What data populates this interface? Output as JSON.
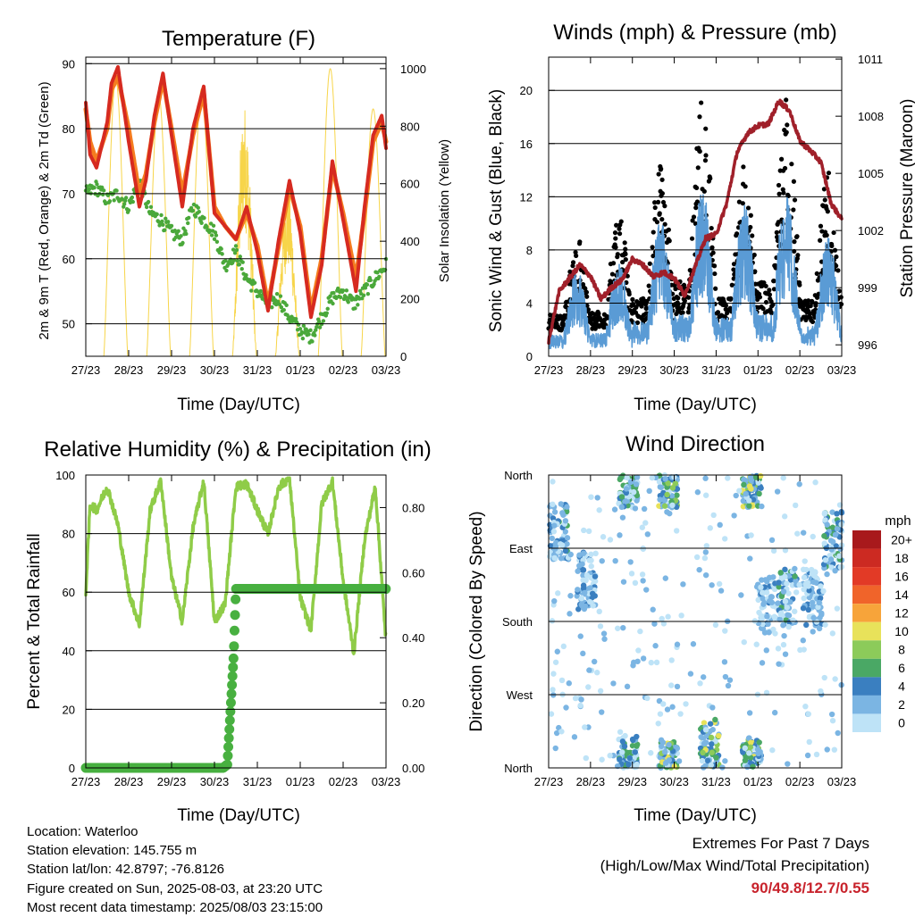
{
  "x_ticks": [
    "27/23",
    "28/23",
    "29/23",
    "30/23",
    "31/23",
    "01/23",
    "02/23",
    "03/23"
  ],
  "x_axis_label": "Time (Day/UTC)",
  "info": {
    "location": "Location: Waterloo",
    "elevation": "Station elevation: 145.755 m",
    "latlon": "Station lat/lon: 42.8797; -76.8126",
    "created": "Figure created on Sun, 2025-08-03, at 23:20 UTC",
    "recent": "Most recent data timestamp: 2025/08/03 23:15:00"
  },
  "extremes": {
    "line1": "Extremes For Past 7 Days",
    "line2": "(High/Low/Max Wind/Total Precipitation)",
    "value": "90/49.8/12.7/0.55"
  },
  "colors": {
    "t2m": "#d62a20",
    "t9m": "#f57c1f",
    "dewpoint": "#4aa83a",
    "solar": "#f7d54a",
    "gust": "#000000",
    "wind": "#5a9bd5",
    "pressure": "#a0202a",
    "rh": "#8fcc48",
    "rain": "#48b040"
  },
  "chart_data": [
    {
      "type": "line",
      "title": "Temperature (F)",
      "xlabel": "Time (Day/UTC)",
      "ylabel": "2m & 9m T (Red, Orange) & 2m Td (Green)",
      "ylabel_right": "Solar Insolation (Yellow)",
      "ylim": [
        45,
        91
      ],
      "yticks": [
        50,
        60,
        70,
        80,
        90
      ],
      "ylim_right": [
        0,
        1040
      ],
      "yticks_right": [
        0,
        200,
        400,
        600,
        800,
        1000
      ],
      "x_days": [
        0,
        7
      ],
      "series": [
        {
          "name": "2m T",
          "x": [
            0,
            0.1,
            0.25,
            0.5,
            0.6,
            0.75,
            1.0,
            1.25,
            1.4,
            1.6,
            1.8,
            2.0,
            2.25,
            2.5,
            2.75,
            3.0,
            3.25,
            3.5,
            3.75,
            4.0,
            4.25,
            4.5,
            4.75,
            5.0,
            5.25,
            5.5,
            5.75,
            6.0,
            6.3,
            6.5,
            6.7,
            6.9,
            7.0
          ],
          "y": [
            84,
            76,
            74,
            81,
            87,
            89.5,
            78,
            68,
            72,
            82,
            88.5,
            79,
            68,
            80,
            86.5,
            67,
            65,
            63,
            68,
            61,
            52,
            63,
            72,
            64,
            51,
            59,
            75,
            66,
            55,
            68,
            79,
            82,
            77
          ]
        },
        {
          "name": "9m T",
          "x": [
            0,
            0.1,
            0.25,
            0.5,
            0.6,
            0.75,
            1.0,
            1.25,
            1.4,
            1.6,
            1.8,
            2.0,
            2.25,
            2.5,
            2.75,
            3.0,
            3.25,
            3.5,
            3.75,
            4.0,
            4.25,
            4.5,
            4.75,
            5.0,
            5.25,
            5.5,
            5.75,
            6.0,
            6.3,
            6.5,
            6.7,
            6.9,
            7.0
          ],
          "y": [
            83,
            78,
            75,
            80,
            86,
            88,
            80,
            70,
            73,
            81,
            87.5,
            80,
            70,
            79,
            85.5,
            68,
            65,
            63,
            67,
            62,
            53,
            62,
            71,
            65,
            52,
            60,
            74,
            67,
            57,
            67,
            78,
            81,
            78
          ]
        },
        {
          "name": "2m Td",
          "x": [
            0,
            0.25,
            0.5,
            0.75,
            1.0,
            1.25,
            1.5,
            1.75,
            2.0,
            2.25,
            2.5,
            2.75,
            3.0,
            3.25,
            3.5,
            3.75,
            4.0,
            4.25,
            4.5,
            4.75,
            5.0,
            5.25,
            5.5,
            5.75,
            6.0,
            6.25,
            6.5,
            6.75,
            7.0
          ],
          "y": [
            70,
            71,
            69,
            70,
            68,
            72,
            67,
            66,
            64,
            63,
            68,
            66,
            64,
            59,
            61,
            57,
            55,
            53,
            54,
            51,
            49,
            48,
            51,
            54,
            55,
            53,
            55,
            57,
            59
          ]
        },
        {
          "name": "Solar Insolation",
          "axis": "right",
          "peaks": [
            960,
            910,
            930,
            880,
            600,
            1000,
            860,
            420
          ]
        }
      ]
    },
    {
      "type": "line",
      "title": "Winds (mph) & Pressure (mb)",
      "xlabel": "Time (Day/UTC)",
      "ylabel": "Sonic Wind & Gust (Blue, Black)",
      "ylabel_right": "Station Pressure (Maroon)",
      "ylim": [
        0,
        22.5
      ],
      "yticks": [
        0,
        4,
        8,
        12,
        16,
        20
      ],
      "ylim_right": [
        995.4,
        1011.1
      ],
      "yticks_right": [
        996,
        999,
        1002,
        1005,
        1008,
        1011
      ],
      "x_days": [
        0,
        7
      ],
      "series": [
        {
          "name": "Gust",
          "daily_gust_peak": [
            8.5,
            9.5,
            13.5,
            18.5,
            13.5,
            18.5,
            13,
            9.5
          ]
        },
        {
          "name": "Wind",
          "daily_wind_peak": [
            6.5,
            7,
            10.5,
            12.5,
            11.5,
            12.5,
            9,
            9
          ]
        },
        {
          "name": "Pressure",
          "x": [
            0,
            0.25,
            0.5,
            0.75,
            1.0,
            1.25,
            1.5,
            1.75,
            2.0,
            2.25,
            2.5,
            2.75,
            3.0,
            3.25,
            3.5,
            3.75,
            4.0,
            4.25,
            4.5,
            4.75,
            5.0,
            5.25,
            5.5,
            5.75,
            6.0,
            6.25,
            6.5,
            6.75,
            7.0
          ],
          "y": [
            996.2,
            998.8,
            999.5,
            1000.2,
            999.6,
            998.4,
            999.0,
            999.4,
            1000.5,
            1000.2,
            999.6,
            999.8,
            999.5,
            998.6,
            1000.1,
            1001.6,
            1001.8,
            1003.4,
            1006.1,
            1007.1,
            1007.5,
            1007.6,
            1008.8,
            1008.3,
            1006.7,
            1006.2,
            1005.6,
            1003.4,
            1002.6
          ]
        }
      ]
    },
    {
      "type": "line",
      "title": "Relative Humidity (%) & Precipitation (in)",
      "xlabel": "Time (Day/UTC)",
      "ylabel": "Percent & Total Rainfall",
      "ylim": [
        0,
        100
      ],
      "yticks": [
        0,
        20,
        40,
        60,
        80,
        100
      ],
      "ylim_right": [
        0,
        0.9
      ],
      "yticks_right": [
        "0.00",
        "0.20",
        "0.40",
        "0.60",
        "0.80"
      ],
      "x_days": [
        0,
        7
      ],
      "series": [
        {
          "name": "RH",
          "x": [
            0,
            0.1,
            0.25,
            0.5,
            0.75,
            1.0,
            1.25,
            1.5,
            1.75,
            2.0,
            2.25,
            2.5,
            2.75,
            3.0,
            3.25,
            3.5,
            3.75,
            4.0,
            4.25,
            4.5,
            4.75,
            5.0,
            5.25,
            5.5,
            5.75,
            6.0,
            6.25,
            6.5,
            6.75,
            7.0
          ],
          "y": [
            60,
            90,
            88,
            96,
            83,
            60,
            49,
            88,
            98,
            65,
            50,
            82,
            98,
            50,
            56,
            96,
            97,
            88,
            80,
            96,
            99,
            58,
            47,
            90,
            98,
            64,
            39,
            78,
            96,
            43
          ]
        },
        {
          "name": "Total Rainfall",
          "axis": "right",
          "x": [
            0,
            3.2,
            3.3,
            3.45,
            3.5,
            7.0
          ],
          "y": [
            0,
            0,
            0.01,
            0.35,
            0.55,
            0.55
          ]
        }
      ]
    },
    {
      "type": "scatter",
      "title": "Wind Direction",
      "xlabel": "Time (Day/UTC)",
      "ylabel": "Direction (Colored By Speed)",
      "yticks": [
        "North",
        "West",
        "South",
        "East",
        "North"
      ],
      "ylim": [
        0,
        360
      ],
      "x_days": [
        0,
        7
      ],
      "colorbar_title": "mph",
      "colorbar_labels": [
        "20+",
        "18",
        "16",
        "14",
        "12",
        "10",
        "8",
        "6",
        "4",
        "2",
        "0"
      ],
      "colorbar_colors": [
        "#a8191c",
        "#cc2a22",
        "#e23a26",
        "#f0642a",
        "#f7a43a",
        "#e8e25a",
        "#8ccb5a",
        "#4aa865",
        "#3a7fc0",
        "#7bb5e3",
        "#bee3f7"
      ],
      "clusters": [
        {
          "day": 0.25,
          "deg": 290,
          "max_mph": 7
        },
        {
          "day": 0.9,
          "deg": 230,
          "max_mph": 6
        },
        {
          "day": 1.9,
          "deg": 330,
          "max_mph": 8
        },
        {
          "day": 1.9,
          "deg": 10,
          "max_mph": 8
        },
        {
          "day": 2.85,
          "deg": 340,
          "max_mph": 11
        },
        {
          "day": 2.85,
          "deg": 10,
          "max_mph": 12
        },
        {
          "day": 3.85,
          "deg": 30,
          "max_mph": 12
        },
        {
          "day": 4.85,
          "deg": 350,
          "max_mph": 12
        },
        {
          "day": 4.85,
          "deg": 10,
          "max_mph": 11
        },
        {
          "day": 5.2,
          "deg": 200,
          "max_mph": 5
        },
        {
          "day": 5.7,
          "deg": 210,
          "max_mph": 7
        },
        {
          "day": 6.3,
          "deg": 210,
          "max_mph": 6
        },
        {
          "day": 6.8,
          "deg": 280,
          "max_mph": 8
        }
      ]
    }
  ]
}
